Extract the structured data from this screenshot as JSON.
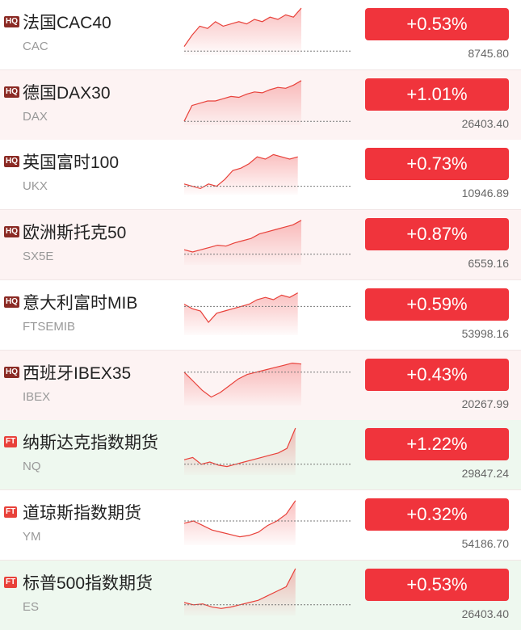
{
  "rows": [
    {
      "badge": "HQ",
      "name": "法国CAC40",
      "code": "CAC",
      "change": "+0.53%",
      "price": "8745.80"
    },
    {
      "badge": "HQ",
      "name": "德国DAX30",
      "code": "DAX",
      "change": "+1.01%",
      "price": "26403.40"
    },
    {
      "badge": "HQ",
      "name": "英国富时100",
      "code": "UKX",
      "change": "+0.73%",
      "price": "10946.89"
    },
    {
      "badge": "HQ",
      "name": "欧洲斯托克50",
      "code": "SX5E",
      "change": "+0.87%",
      "price": "6559.16"
    },
    {
      "badge": "HQ",
      "name": "意大利富时MIB",
      "code": "FTSEMIB",
      "change": "+0.59%",
      "price": "53998.16"
    },
    {
      "badge": "HQ",
      "name": "西班牙IBEX35",
      "code": "IBEX",
      "change": "+0.43%",
      "price": "20267.99"
    },
    {
      "badge": "FT",
      "name": "纳斯达克指数期货",
      "code": "NQ",
      "change": "+1.22%",
      "price": "29847.24"
    },
    {
      "badge": "FT",
      "name": "道琼斯指数期货",
      "code": "YM",
      "change": "+0.32%",
      "price": "54186.70"
    },
    {
      "badge": "FT",
      "name": "标普500指数期货",
      "code": "ES",
      "change": "+0.53%",
      "price": "26403.40"
    }
  ]
}
